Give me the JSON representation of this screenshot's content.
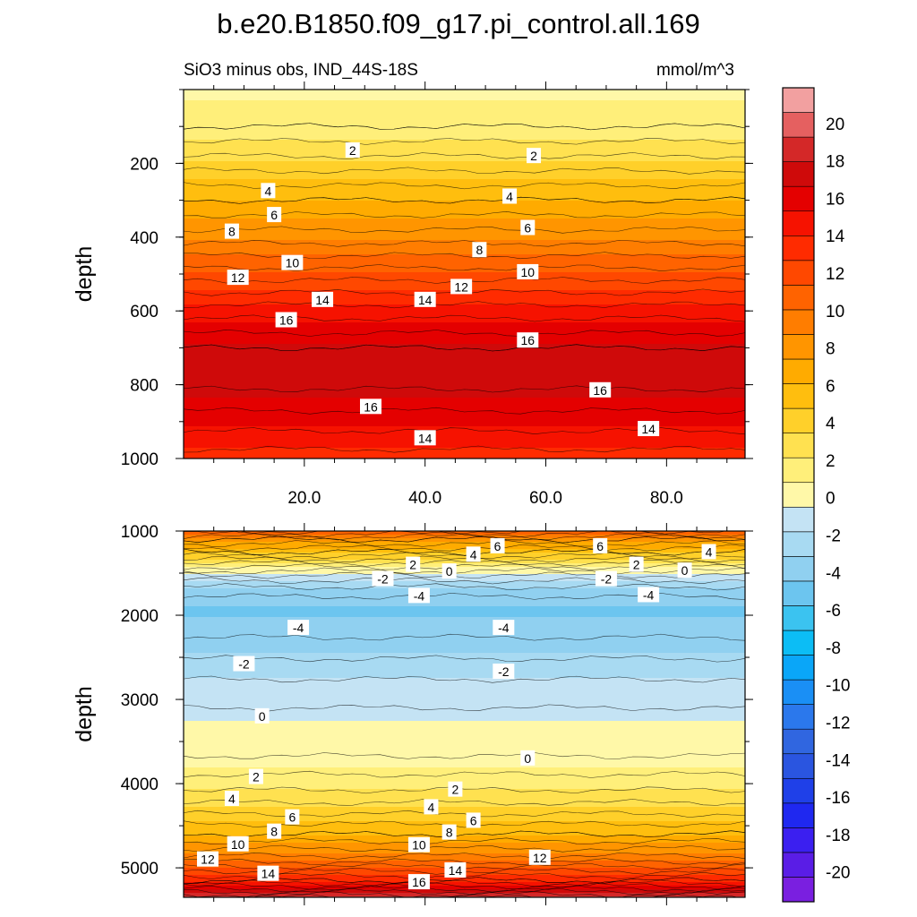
{
  "title": "b.e20.B1850.f09_g17.pi_control.all.169",
  "subtitle_left": "SiO3 minus obs, IND_44S-18S",
  "subtitle_right": "mmol/m^3",
  "chart_data": [
    {
      "type": "contour",
      "panel": "upper",
      "ylabel": "depth",
      "xlim": [
        0,
        93
      ],
      "ylim": [
        1000,
        0
      ],
      "x_ticks": [
        20,
        40,
        60,
        80
      ],
      "x_tick_labels": [
        "20.0",
        "40.0",
        "60.0",
        "80.0"
      ],
      "y_ticks": [
        200,
        400,
        600,
        800,
        1000
      ],
      "y_tick_labels": [
        "200",
        "400",
        "600",
        "800",
        "1000"
      ],
      "profile": [
        {
          "depth": 0,
          "value": 0.5
        },
        {
          "depth": 100,
          "value": 1.0
        },
        {
          "depth": 200,
          "value": 3.5
        },
        {
          "depth": 300,
          "value": 6.0
        },
        {
          "depth": 400,
          "value": 8.5
        },
        {
          "depth": 500,
          "value": 11.5
        },
        {
          "depth": 600,
          "value": 14.5
        },
        {
          "depth": 700,
          "value": 17.0
        },
        {
          "depth": 800,
          "value": 17.2
        },
        {
          "depth": 900,
          "value": 15.5
        },
        {
          "depth": 1000,
          "value": 13.5
        }
      ],
      "labels": [
        {
          "text": "2",
          "x": 28,
          "depth": 165
        },
        {
          "text": "2",
          "x": 58,
          "depth": 180
        },
        {
          "text": "4",
          "x": 14,
          "depth": 275
        },
        {
          "text": "4",
          "x": 54,
          "depth": 290
        },
        {
          "text": "6",
          "x": 15,
          "depth": 340
        },
        {
          "text": "6",
          "x": 57,
          "depth": 375
        },
        {
          "text": "8",
          "x": 8,
          "depth": 385
        },
        {
          "text": "8",
          "x": 49,
          "depth": 435
        },
        {
          "text": "10",
          "x": 18,
          "depth": 470
        },
        {
          "text": "10",
          "x": 57,
          "depth": 495
        },
        {
          "text": "12",
          "x": 9,
          "depth": 510
        },
        {
          "text": "12",
          "x": 46,
          "depth": 535
        },
        {
          "text": "14",
          "x": 23,
          "depth": 570
        },
        {
          "text": "14",
          "x": 40,
          "depth": 570
        },
        {
          "text": "16",
          "x": 17,
          "depth": 625
        },
        {
          "text": "16",
          "x": 57,
          "depth": 680
        },
        {
          "text": "16",
          "x": 69,
          "depth": 815
        },
        {
          "text": "16",
          "x": 31,
          "depth": 860
        },
        {
          "text": "14",
          "x": 77,
          "depth": 920
        },
        {
          "text": "14",
          "x": 40,
          "depth": 945
        }
      ]
    },
    {
      "type": "contour",
      "panel": "lower",
      "ylabel": "depth",
      "xlim": [
        0,
        93
      ],
      "ylim": [
        5350,
        1000
      ],
      "y_ticks": [
        1000,
        2000,
        3000,
        4000,
        5000
      ],
      "y_tick_labels": [
        "1000",
        "2000",
        "3000",
        "4000",
        "5000"
      ],
      "profile": [
        {
          "depth": 1000,
          "value": 11.0
        },
        {
          "depth": 1100,
          "value": 8.0
        },
        {
          "depth": 1250,
          "value": 5.0
        },
        {
          "depth": 1400,
          "value": 1.5
        },
        {
          "depth": 1550,
          "value": -1.5
        },
        {
          "depth": 1700,
          "value": -3.5
        },
        {
          "depth": 1900,
          "value": -4.8
        },
        {
          "depth": 2100,
          "value": -4.6
        },
        {
          "depth": 2400,
          "value": -3.5
        },
        {
          "depth": 2700,
          "value": -2.2
        },
        {
          "depth": 3000,
          "value": -1.2
        },
        {
          "depth": 3300,
          "value": -0.6
        },
        {
          "depth": 3650,
          "value": -0.1
        },
        {
          "depth": 4000,
          "value": 1.5
        },
        {
          "depth": 4300,
          "value": 3.5
        },
        {
          "depth": 4600,
          "value": 6.0
        },
        {
          "depth": 4900,
          "value": 9.5
        },
        {
          "depth": 5150,
          "value": 14.0
        },
        {
          "depth": 5350,
          "value": 20.0
        }
      ],
      "labels": [
        {
          "text": "6",
          "x": 52,
          "depth": 1180
        },
        {
          "text": "6",
          "x": 69,
          "depth": 1180
        },
        {
          "text": "4",
          "x": 48,
          "depth": 1280
        },
        {
          "text": "4",
          "x": 87,
          "depth": 1250
        },
        {
          "text": "2",
          "x": 38,
          "depth": 1400
        },
        {
          "text": "2",
          "x": 75,
          "depth": 1400
        },
        {
          "text": "0",
          "x": 44,
          "depth": 1480
        },
        {
          "text": "0",
          "x": 83,
          "depth": 1470
        },
        {
          "text": "-2",
          "x": 33,
          "depth": 1570
        },
        {
          "text": "-2",
          "x": 70,
          "depth": 1570
        },
        {
          "text": "-4",
          "x": 39,
          "depth": 1770
        },
        {
          "text": "-4",
          "x": 77,
          "depth": 1760
        },
        {
          "text": "-4",
          "x": 19,
          "depth": 2150
        },
        {
          "text": "-4",
          "x": 53,
          "depth": 2150
        },
        {
          "text": "-2",
          "x": 10,
          "depth": 2580
        },
        {
          "text": "-2",
          "x": 53,
          "depth": 2670
        },
        {
          "text": "0",
          "x": 13,
          "depth": 3200
        },
        {
          "text": "0",
          "x": 57,
          "depth": 3700
        },
        {
          "text": "2",
          "x": 12,
          "depth": 3920
        },
        {
          "text": "2",
          "x": 45,
          "depth": 4070
        },
        {
          "text": "4",
          "x": 8,
          "depth": 4180
        },
        {
          "text": "4",
          "x": 41,
          "depth": 4280
        },
        {
          "text": "6",
          "x": 18,
          "depth": 4400
        },
        {
          "text": "6",
          "x": 48,
          "depth": 4440
        },
        {
          "text": "8",
          "x": 15,
          "depth": 4570
        },
        {
          "text": "8",
          "x": 44,
          "depth": 4580
        },
        {
          "text": "10",
          "x": 9,
          "depth": 4720
        },
        {
          "text": "10",
          "x": 39,
          "depth": 4730
        },
        {
          "text": "12",
          "x": 4,
          "depth": 4900
        },
        {
          "text": "12",
          "x": 59,
          "depth": 4880
        },
        {
          "text": "14",
          "x": 14,
          "depth": 5070
        },
        {
          "text": "14",
          "x": 45,
          "depth": 5030
        },
        {
          "text": "16",
          "x": 39,
          "depth": 5170
        }
      ]
    }
  ],
  "colorbar": {
    "min": -22,
    "max": 22,
    "labels": [
      "20",
      "18",
      "16",
      "14",
      "12",
      "10",
      "8",
      "6",
      "4",
      "2",
      "0",
      "-2",
      "-4",
      "-6",
      "-8",
      "-10",
      "-12",
      "-14",
      "-16",
      "-18",
      "-20"
    ],
    "colors": [
      "#7a1fe0",
      "#5a1de6",
      "#3b1ff0",
      "#1f28f0",
      "#1f40e8",
      "#2a55e0",
      "#3066e0",
      "#2b78ec",
      "#1a8ff5",
      "#0aa6f8",
      "#0cbdf5",
      "#3bc3f0",
      "#6cc5ef",
      "#90d0f0",
      "#a8daf2",
      "#c4e3f4",
      "#fff8a8",
      "#ffef7a",
      "#ffe150",
      "#ffd02a",
      "#ffbe0e",
      "#ffab00",
      "#ff9500",
      "#ff7d00",
      "#ff6300",
      "#ff4800",
      "#ff2b00",
      "#f61200",
      "#e40000",
      "#cf0a0a",
      "#d42828",
      "#e56060",
      "#f2a0a0"
    ]
  }
}
